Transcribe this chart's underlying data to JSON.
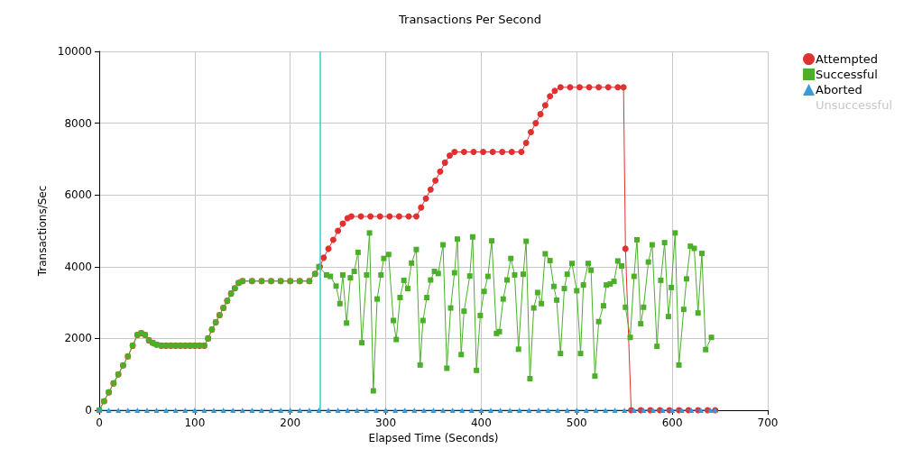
{
  "chart_data": {
    "type": "line",
    "title": "Transactions Per Second",
    "xlabel": "Elapsed Time (Seconds)",
    "ylabel": "Transactions/Sec",
    "xlim": [
      0,
      700
    ],
    "xticks": [
      0,
      100,
      200,
      300,
      400,
      500,
      600,
      700
    ],
    "ylim": [
      0,
      10000
    ],
    "yticks": [
      0,
      2000,
      4000,
      6000,
      8000,
      10000
    ],
    "grid": true,
    "legend": "top right",
    "line_style": "solid",
    "ref_lines": [
      {
        "axis": "x",
        "value": 231,
        "color": "#33cccc"
      }
    ],
    "series": [
      {
        "name": "Attempted",
        "color": "#e03030",
        "marker": "circle",
        "x": [
          0,
          5,
          10,
          15,
          20,
          25,
          30,
          35,
          40,
          44,
          48,
          52,
          56,
          60,
          65,
          70,
          75,
          80,
          85,
          90,
          95,
          100,
          105,
          110,
          114,
          118,
          122,
          126,
          130,
          134,
          138,
          142,
          146,
          150,
          160,
          170,
          180,
          190,
          200,
          210,
          220,
          226,
          231,
          235,
          240,
          245,
          250,
          255,
          260,
          264,
          274,
          284,
          294,
          304,
          314,
          324,
          332,
          337,
          342,
          347,
          352,
          357,
          362,
          367,
          372,
          382,
          392,
          402,
          412,
          422,
          432,
          442,
          447,
          452,
          457,
          462,
          467,
          472,
          477,
          483,
          493,
          503,
          513,
          523,
          533,
          543,
          549,
          551,
          557,
          567,
          577,
          587,
          597,
          607,
          617,
          627,
          637,
          645
        ],
        "values": [
          0,
          250,
          500,
          750,
          1000,
          1250,
          1500,
          1800,
          2100,
          2150,
          2100,
          1950,
          1880,
          1830,
          1800,
          1800,
          1800,
          1800,
          1800,
          1800,
          1800,
          1800,
          1800,
          1800,
          2000,
          2250,
          2450,
          2650,
          2850,
          3050,
          3250,
          3400,
          3550,
          3600,
          3600,
          3600,
          3600,
          3600,
          3600,
          3600,
          3600,
          3800,
          4000,
          4250,
          4500,
          4750,
          5000,
          5200,
          5350,
          5400,
          5400,
          5400,
          5400,
          5400,
          5400,
          5400,
          5400,
          5650,
          5900,
          6150,
          6400,
          6650,
          6900,
          7100,
          7200,
          7200,
          7200,
          7200,
          7200,
          7200,
          7200,
          7200,
          7450,
          7750,
          8000,
          8250,
          8500,
          8750,
          8900,
          9000,
          9000,
          9000,
          9000,
          9000,
          9000,
          9000,
          9000,
          4500,
          0,
          0,
          0,
          0,
          0,
          0,
          0,
          0,
          0,
          0
        ]
      },
      {
        "name": "Successful",
        "color": "#4caf2a",
        "marker": "square",
        "x": [
          0,
          5,
          10,
          15,
          20,
          25,
          30,
          35,
          40,
          44,
          48,
          52,
          56,
          60,
          65,
          70,
          75,
          80,
          85,
          90,
          95,
          100,
          105,
          110,
          114,
          118,
          122,
          126,
          130,
          134,
          138,
          142,
          146,
          150,
          160,
          170,
          180,
          190,
          200,
          210,
          220,
          226,
          230,
          238,
          242,
          248,
          252,
          255,
          259,
          263,
          267,
          271,
          275,
          280,
          283,
          287,
          291,
          295,
          298,
          303,
          308,
          311,
          315,
          319,
          323,
          327,
          332,
          336,
          339,
          343,
          347,
          351,
          355,
          360,
          364,
          368,
          372,
          375,
          379,
          382,
          388,
          391,
          395,
          399,
          403,
          407,
          411,
          416,
          419,
          423,
          427,
          431,
          435,
          439,
          444,
          447,
          451,
          455,
          459,
          463,
          467,
          472,
          476,
          479,
          483,
          487,
          490,
          495,
          500,
          504,
          507,
          512,
          515,
          519,
          523,
          528,
          531,
          535,
          539,
          543,
          547,
          551,
          556,
          560,
          563,
          567,
          570,
          575,
          579,
          584,
          588,
          592,
          596,
          599,
          603,
          607,
          612,
          615,
          619,
          623,
          627,
          631,
          635,
          641
        ],
        "values": [
          0,
          250,
          500,
          750,
          1000,
          1250,
          1500,
          1800,
          2100,
          2150,
          2100,
          1950,
          1880,
          1830,
          1800,
          1800,
          1800,
          1800,
          1800,
          1800,
          1800,
          1800,
          1800,
          1800,
          2000,
          2250,
          2450,
          2650,
          2850,
          3050,
          3250,
          3400,
          3550,
          3600,
          3600,
          3600,
          3600,
          3600,
          3600,
          3600,
          3600,
          3800,
          4000,
          3770,
          3730,
          3460,
          2970,
          3770,
          2430,
          3690,
          3870,
          4400,
          1880,
          3770,
          4940,
          540,
          3100,
          3770,
          4230,
          4340,
          2500,
          1970,
          3140,
          3620,
          3390,
          4100,
          4480,
          1260,
          2500,
          3140,
          3630,
          3870,
          3810,
          4610,
          1170,
          2850,
          3830,
          4770,
          1550,
          2760,
          3740,
          4830,
          1110,
          2640,
          3310,
          3730,
          4720,
          2140,
          2190,
          3100,
          3630,
          4230,
          3770,
          1700,
          3790,
          4710,
          880,
          2850,
          3280,
          2970,
          4360,
          4170,
          3450,
          3070,
          1580,
          3390,
          3790,
          4090,
          3330,
          1580,
          3490,
          4090,
          3900,
          950,
          2470,
          2910,
          3490,
          3520,
          3590,
          4160,
          4020,
          2870,
          2030,
          3730,
          4750,
          2410,
          2870,
          4130,
          4610,
          1780,
          3620,
          4670,
          2610,
          3420,
          4940,
          1260,
          2810,
          3660,
          4570,
          4510,
          2710,
          4370,
          1690,
          2030
        ]
      },
      {
        "name": "Aborted",
        "color": "#3a9ad9",
        "marker": "triangle",
        "x": [
          0,
          10,
          20,
          30,
          40,
          50,
          60,
          70,
          80,
          90,
          100,
          110,
          120,
          130,
          140,
          150,
          160,
          170,
          180,
          190,
          200,
          210,
          220,
          230,
          240,
          250,
          260,
          270,
          280,
          290,
          300,
          310,
          320,
          330,
          340,
          350,
          360,
          370,
          380,
          390,
          400,
          410,
          420,
          430,
          440,
          450,
          460,
          470,
          480,
          490,
          500,
          510,
          520,
          530,
          540,
          550,
          560,
          570,
          580,
          590,
          600,
          610,
          620,
          630,
          640,
          645
        ],
        "values": [
          0,
          0,
          0,
          0,
          0,
          0,
          0,
          0,
          0,
          0,
          0,
          0,
          0,
          0,
          0,
          0,
          0,
          0,
          0,
          0,
          0,
          0,
          0,
          0,
          0,
          0,
          0,
          0,
          0,
          0,
          0,
          0,
          0,
          0,
          0,
          0,
          0,
          0,
          0,
          0,
          0,
          0,
          0,
          0,
          0,
          0,
          0,
          0,
          0,
          0,
          0,
          0,
          0,
          0,
          0,
          0,
          0,
          0,
          0,
          0,
          0,
          0,
          0,
          0,
          0,
          0
        ]
      },
      {
        "name": "Unsuccessful",
        "color": "#c8c8c8"
      }
    ]
  }
}
